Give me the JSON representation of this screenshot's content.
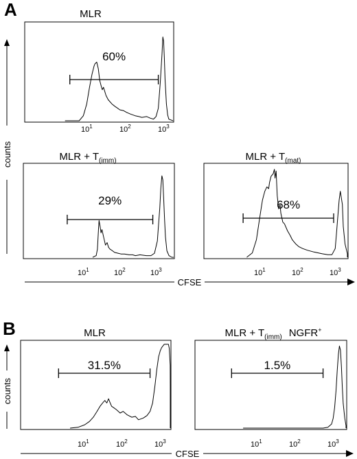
{
  "panels": {
    "A": "A",
    "B": "B"
  },
  "labels": {
    "counts": "counts",
    "cfse": "CFSE"
  },
  "chart_data": [
    {
      "type": "area",
      "panel": "A",
      "title": "MLR",
      "gate_label": "60%",
      "xscale": "log",
      "xlim": [
        1,
        10000
      ],
      "x_ticks": [
        10,
        100,
        1000
      ],
      "x": [
        3,
        7,
        9,
        11,
        13,
        15,
        17,
        18,
        20,
        22,
        24,
        26,
        28,
        30,
        35,
        40,
        50,
        60,
        70,
        80,
        100,
        120,
        150,
        200,
        250,
        300,
        400,
        500,
        600,
        700,
        800,
        900,
        1000,
        1050,
        1100,
        1150,
        1200,
        1300,
        1400,
        1500,
        1700,
        2000,
        3000,
        5000
      ],
      "y": [
        0.0,
        0.0,
        0.06,
        0.2,
        0.4,
        0.55,
        0.65,
        0.68,
        0.7,
        0.62,
        0.48,
        0.42,
        0.37,
        0.4,
        0.3,
        0.25,
        0.2,
        0.17,
        0.15,
        0.13,
        0.12,
        0.1,
        0.08,
        0.06,
        0.05,
        0.04,
        0.05,
        0.03,
        0.02,
        0.05,
        0.15,
        0.45,
        0.8,
        1.0,
        0.95,
        0.75,
        0.5,
        0.2,
        0.07,
        0.02,
        0.01,
        0.0,
        0.0,
        0.0
      ],
      "gate_range": [
        4,
        800
      ]
    },
    {
      "type": "area",
      "panel": "A",
      "title_main": "MLR + T",
      "title_sub": "(imm)",
      "gate_label": "29%",
      "xscale": "log",
      "xlim": [
        1,
        10000
      ],
      "x_ticks": [
        10,
        100,
        1000
      ],
      "x": [
        20,
        25,
        27,
        29,
        30,
        32,
        34,
        36,
        40,
        45,
        50,
        55,
        60,
        70,
        80,
        100,
        120,
        150,
        200,
        250,
        300,
        400,
        600,
        800,
        1000,
        1200,
        1400,
        1500,
        1600,
        1700,
        1800,
        1900,
        2000,
        2200,
        2500,
        3000,
        5000
      ],
      "y": [
        0.0,
        0.02,
        0.1,
        0.35,
        0.45,
        0.38,
        0.3,
        0.34,
        0.25,
        0.15,
        0.18,
        0.12,
        0.1,
        0.08,
        0.06,
        0.05,
        0.04,
        0.04,
        0.03,
        0.03,
        0.02,
        0.03,
        0.02,
        0.02,
        0.05,
        0.2,
        0.6,
        0.85,
        1.0,
        0.95,
        0.7,
        0.45,
        0.25,
        0.08,
        0.02,
        0.0,
        0.0
      ],
      "gate_range": [
        4,
        900
      ]
    },
    {
      "type": "area",
      "panel": "A",
      "title_main": "MLR + T",
      "title_sub": "(mat)",
      "gate_label": "68%",
      "xscale": "log",
      "xlim": [
        1,
        10000
      ],
      "x_ticks": [
        10,
        100,
        1000
      ],
      "x": [
        5,
        7,
        9,
        11,
        13,
        15,
        17,
        19,
        20,
        22,
        25,
        27,
        28,
        30,
        32,
        35,
        38,
        40,
        45,
        50,
        60,
        70,
        80,
        100,
        120,
        150,
        200,
        300,
        500,
        700,
        900,
        1100,
        1200,
        1400,
        1500,
        1700,
        1800,
        2000,
        2500,
        3000,
        5000
      ],
      "y": [
        0.0,
        0.05,
        0.2,
        0.45,
        0.65,
        0.75,
        0.8,
        0.78,
        0.85,
        0.92,
        0.95,
        1.0,
        0.9,
        0.98,
        0.7,
        0.55,
        0.6,
        0.5,
        0.4,
        0.38,
        0.3,
        0.25,
        0.2,
        0.15,
        0.12,
        0.1,
        0.08,
        0.06,
        0.04,
        0.03,
        0.03,
        0.1,
        0.3,
        0.65,
        0.75,
        0.6,
        0.35,
        0.15,
        0.04,
        0.01,
        0.0
      ],
      "gate_range": [
        4,
        1000
      ]
    },
    {
      "type": "area",
      "panel": "B",
      "title": "MLR",
      "gate_label": "31.5%",
      "xscale": "log",
      "xlim": [
        1,
        10000
      ],
      "x_ticks": [
        10,
        100,
        1000
      ],
      "x": [
        5,
        8,
        12,
        16,
        20,
        25,
        30,
        35,
        40,
        45,
        50,
        55,
        60,
        70,
        80,
        100,
        120,
        150,
        200,
        250,
        300,
        400,
        500,
        600,
        700,
        800,
        900,
        1000,
        1100,
        1200,
        1400,
        1600,
        1800,
        1900,
        2000,
        2100,
        2200,
        2400,
        2700,
        3000,
        5000
      ],
      "y": [
        0.0,
        0.01,
        0.04,
        0.08,
        0.13,
        0.2,
        0.26,
        0.3,
        0.33,
        0.3,
        0.35,
        0.3,
        0.26,
        0.24,
        0.22,
        0.18,
        0.2,
        0.16,
        0.13,
        0.14,
        0.1,
        0.12,
        0.15,
        0.2,
        0.3,
        0.5,
        0.7,
        0.85,
        0.92,
        0.96,
        1.0,
        1.0,
        1.0,
        0.95,
        0.75,
        0.5,
        0.25,
        0.08,
        0.02,
        0.0,
        0.0
      ],
      "gate_range": [
        2.5,
        600
      ]
    },
    {
      "type": "area",
      "panel": "B",
      "title_main": "MLR + T",
      "title_sub": "(imm)",
      "title_extra": "NGFR",
      "title_extra_sup": "+",
      "gate_label": "1.5%",
      "xscale": "log",
      "xlim": [
        1,
        10000
      ],
      "x_ticks": [
        10,
        100,
        1000
      ],
      "x": [
        5,
        100,
        600,
        800,
        1000,
        1100,
        1200,
        1300,
        1400,
        1500,
        1600,
        1700,
        1800,
        1900,
        2000,
        2200,
        2500,
        3000,
        5000
      ],
      "y": [
        0.0,
        0.0,
        0.0,
        0.01,
        0.05,
        0.12,
        0.25,
        0.45,
        0.7,
        0.9,
        1.0,
        0.95,
        0.75,
        0.5,
        0.3,
        0.12,
        0.03,
        0.0,
        0.0
      ],
      "gate_range": [
        2.5,
        600
      ]
    }
  ]
}
